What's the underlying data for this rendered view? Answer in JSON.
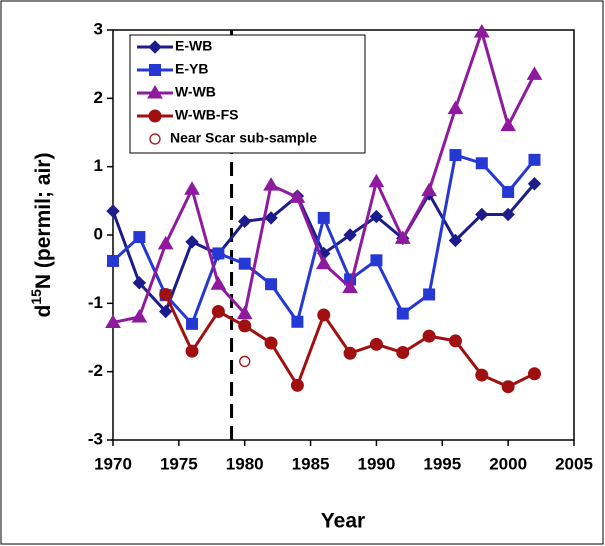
{
  "chart_data": {
    "type": "line",
    "x_label": "Year",
    "y_label": {
      "prefix": "d",
      "superscript": "15",
      "suffix": "N (permil; air)"
    },
    "x": [
      1970,
      1972,
      1974,
      1976,
      1978,
      1980,
      1982,
      1984,
      1986,
      1988,
      1990,
      1992,
      1994,
      1996,
      1998,
      2000,
      2002
    ],
    "series": [
      {
        "name": "E-WB",
        "color": "#1c1c8c",
        "marker": "diamond",
        "values": [
          0.35,
          -0.7,
          -1.12,
          -0.1,
          -0.28,
          0.2,
          0.25,
          0.57,
          -0.27,
          0,
          0.27,
          -0.05,
          0.6,
          -0.08,
          0.3,
          0.3,
          0.75
        ]
      },
      {
        "name": "E-YB",
        "color": "#2538d4",
        "marker": "square",
        "values": [
          -0.38,
          -0.03,
          -0.88,
          -1.3,
          -0.27,
          -0.42,
          -0.72,
          -1.27,
          0.25,
          -0.65,
          -0.37,
          -1.15,
          -0.87,
          1.17,
          1.05,
          0.63,
          1.1
        ]
      },
      {
        "name": "W-WB",
        "color": "#8e1a9e",
        "marker": "triangle",
        "values": [
          -1.28,
          -1.2,
          -0.13,
          0.67,
          -0.72,
          -1.15,
          0.73,
          0.55,
          -0.42,
          -0.77,
          0.78,
          -0.05,
          0.65,
          1.85,
          2.97,
          1.6,
          2.35
        ]
      },
      {
        "name": "W-WB-FS",
        "color": "#a01010",
        "marker": "circle",
        "values": [
          null,
          null,
          -0.87,
          -1.7,
          -1.12,
          -1.33,
          -1.58,
          -2.2,
          -1.17,
          -1.73,
          -1.6,
          -1.72,
          -1.48,
          -1.55,
          -2.05,
          -2.22,
          -2.03
        ]
      },
      {
        "name": "Near Scar sub-sample",
        "color": "#a01010",
        "marker": "open-circle",
        "line": false,
        "x": [
          1980
        ],
        "values": [
          -1.85
        ]
      }
    ],
    "vline_x": 1979,
    "xlim": [
      1970,
      2005
    ],
    "xticks": [
      1970,
      1975,
      1980,
      1985,
      1990,
      1995,
      2000,
      2005
    ],
    "ylim": [
      -3,
      3
    ],
    "yticks": [
      -3,
      -2,
      -1,
      0,
      1,
      2,
      3
    ],
    "legend": "upper-left"
  }
}
